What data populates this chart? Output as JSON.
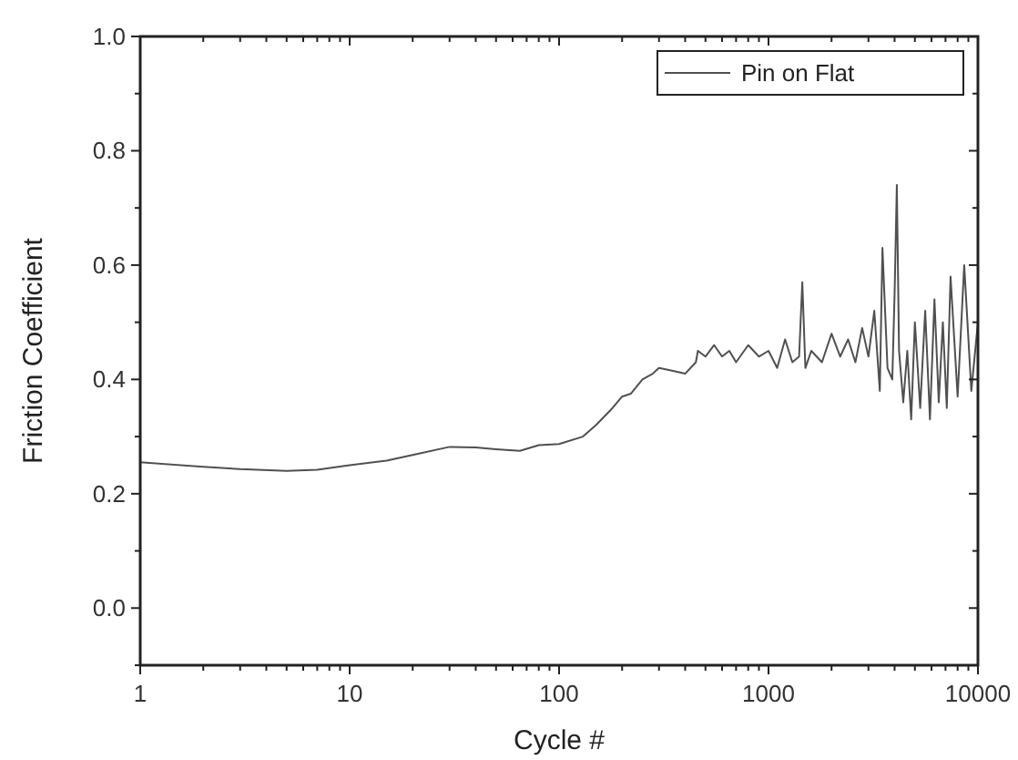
{
  "chart_data": {
    "type": "line",
    "xlabel": "Cycle #",
    "ylabel": "Friction Coefficient",
    "log": "x",
    "xlim": [
      1,
      10000
    ],
    "ylim": [
      -0.1,
      1.0
    ],
    "xticks": [
      1,
      {
        "value": 2,
        "label": null
      },
      {
        "value": 3,
        "label": null
      },
      {
        "value": 4,
        "label": null
      },
      {
        "value": 5,
        "label": null
      },
      {
        "value": 6,
        "label": null
      },
      {
        "value": 7,
        "label": null
      },
      {
        "value": 8,
        "label": null
      },
      {
        "value": 9,
        "label": null
      },
      10,
      {
        "value": 20,
        "label": null
      },
      {
        "value": 30,
        "label": null
      },
      {
        "value": 40,
        "label": null
      },
      {
        "value": 50,
        "label": null
      },
      {
        "value": 60,
        "label": null
      },
      {
        "value": 70,
        "label": null
      },
      {
        "value": 80,
        "label": null
      },
      {
        "value": 90,
        "label": null
      },
      100,
      {
        "value": 200,
        "label": null
      },
      {
        "value": 300,
        "label": null
      },
      {
        "value": 400,
        "label": null
      },
      {
        "value": 500,
        "label": null
      },
      {
        "value": 600,
        "label": null
      },
      {
        "value": 700,
        "label": null
      },
      {
        "value": 800,
        "label": null
      },
      {
        "value": 900,
        "label": null
      },
      1000,
      {
        "value": 2000,
        "label": null
      },
      {
        "value": 3000,
        "label": null
      },
      {
        "value": 4000,
        "label": null
      },
      {
        "value": 5000,
        "label": null
      },
      {
        "value": 6000,
        "label": null
      },
      {
        "value": 7000,
        "label": null
      },
      {
        "value": 8000,
        "label": null
      },
      {
        "value": 9000,
        "label": null
      },
      10000
    ],
    "yticks": [
      {
        "value": -0.1,
        "label": null
      },
      {
        "value": 0,
        "label": "0.0"
      },
      {
        "value": 0.1,
        "label": null
      },
      0.2,
      {
        "value": 0.3,
        "label": null
      },
      0.4,
      {
        "value": 0.5,
        "label": null
      },
      0.6,
      {
        "value": 0.7,
        "label": null
      },
      0.8,
      {
        "value": 0.9,
        "label": null
      },
      {
        "value": 1,
        "label": "1.0"
      }
    ],
    "legend": "top right",
    "grid": false,
    "marker": "none",
    "line_style": "solid",
    "series": [
      {
        "name": "Pin on Flat",
        "color": "#505050",
        "x": [
          1,
          2,
          3,
          5,
          7,
          10,
          15,
          20,
          30,
          40,
          50,
          65,
          80,
          100,
          130,
          150,
          180,
          200,
          220,
          250,
          280,
          300,
          350,
          400,
          450,
          460,
          500,
          550,
          600,
          650,
          700,
          800,
          900,
          1000,
          1100,
          1200,
          1300,
          1400,
          1450,
          1500,
          1600,
          1800,
          2000,
          2200,
          2400,
          2600,
          2800,
          3000,
          3200,
          3400,
          3500,
          3700,
          3900,
          4000,
          4100,
          4200,
          4400,
          4600,
          4800,
          5000,
          5300,
          5600,
          5900,
          6200,
          6500,
          6800,
          7100,
          7400,
          8000,
          8600,
          9300,
          10000
        ],
        "values": [
          0.255,
          0.247,
          0.243,
          0.24,
          0.242,
          0.25,
          0.258,
          0.268,
          0.282,
          0.281,
          0.278,
          0.275,
          0.285,
          0.287,
          0.3,
          0.32,
          0.35,
          0.37,
          0.375,
          0.4,
          0.41,
          0.42,
          0.415,
          0.41,
          0.43,
          0.45,
          0.44,
          0.46,
          0.44,
          0.45,
          0.43,
          0.46,
          0.44,
          0.45,
          0.42,
          0.47,
          0.43,
          0.44,
          0.57,
          0.42,
          0.45,
          0.43,
          0.48,
          0.44,
          0.47,
          0.43,
          0.49,
          0.44,
          0.52,
          0.38,
          0.63,
          0.42,
          0.4,
          0.55,
          0.74,
          0.45,
          0.36,
          0.45,
          0.33,
          0.5,
          0.35,
          0.52,
          0.33,
          0.54,
          0.36,
          0.5,
          0.35,
          0.58,
          0.37,
          0.6,
          0.38,
          0.5
        ]
      }
    ]
  }
}
